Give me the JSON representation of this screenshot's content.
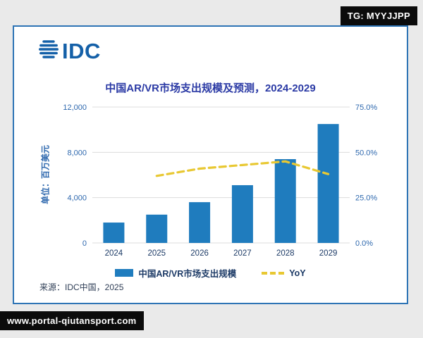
{
  "badges": {
    "top_right": "TG: MYYJJPP",
    "bottom_left": "www.portal-qiutansport.com"
  },
  "logo": {
    "text": "IDC"
  },
  "chart_data": {
    "type": "bar",
    "subtype": "bar+line-combo",
    "title": "中国AR/VR市场支出规模及预测，2024-2029",
    "categories": [
      "2024",
      "2025",
      "2026",
      "2027",
      "2028",
      "2029"
    ],
    "series": [
      {
        "name": "中国AR/VR市场支出规模",
        "type": "bar",
        "axis": "left",
        "color": "#1f7cbe",
        "values": [
          1800,
          2500,
          3600,
          5100,
          7400,
          10500
        ]
      },
      {
        "name": "YoY",
        "type": "line",
        "axis": "right",
        "color": "#e8c832",
        "dashed": true,
        "values": [
          null,
          37,
          41,
          43,
          45,
          38
        ]
      }
    ],
    "left_axis": {
      "label": "单位：百万美元",
      "min": 0,
      "max": 12000,
      "ticks": [
        {
          "value": 0,
          "label": "0"
        },
        {
          "value": 4000,
          "label": "4,000"
        },
        {
          "value": 8000,
          "label": "8,000"
        },
        {
          "value": 12000,
          "label": "12,000"
        }
      ]
    },
    "right_axis": {
      "min": 0,
      "max": 75,
      "ticks": [
        {
          "value": 0,
          "label": "0.0%"
        },
        {
          "value": 25,
          "label": "25.0%"
        },
        {
          "value": 50,
          "label": "50.0%"
        },
        {
          "value": 75,
          "label": "75.0%"
        }
      ]
    },
    "grid": true,
    "legend_position": "bottom"
  },
  "source": "来源：IDC中国，2025"
}
